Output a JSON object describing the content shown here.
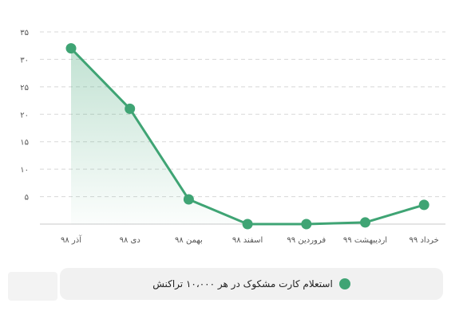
{
  "chart_data": {
    "type": "line",
    "categories": [
      "آذر ۹۸",
      "دی ۹۸",
      "بهمن ۹۸",
      "اسفند ۹۸",
      "فروردین ۹۹",
      "اردیبهشت ۹۹",
      "خرداد ۹۹"
    ],
    "series": [
      {
        "name": "استعلام کارت مشکوک در هر ۱۰،۰۰۰ تراکنش",
        "values": [
          32,
          21,
          4.5,
          0,
          0,
          0.3,
          3.5
        ]
      }
    ],
    "ylim": [
      0,
      35
    ],
    "yticks": [
      0,
      5,
      10,
      15,
      20,
      25,
      30,
      35
    ],
    "ytick_labels": [
      "",
      "۵",
      "۱۰",
      "۱۵",
      "۲۰",
      "۲۵",
      "۳۰",
      "۳۵"
    ],
    "grid": true,
    "legend_position": "bottom"
  },
  "colors": {
    "series": "#3fa474",
    "fill": "#3fa474",
    "grid": "#d8d8d8",
    "axis": "#555555"
  }
}
